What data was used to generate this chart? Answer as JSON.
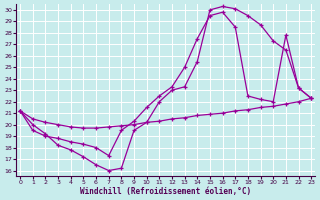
{
  "xlabel": "Windchill (Refroidissement éolien,°C)",
  "bg_color": "#c8ecec",
  "grid_color": "#aadddd",
  "line_color": "#990099",
  "xlim": [
    -0.3,
    23.3
  ],
  "ylim": [
    15.5,
    30.5
  ],
  "xticks": [
    0,
    1,
    2,
    3,
    4,
    5,
    6,
    7,
    8,
    9,
    10,
    11,
    12,
    13,
    14,
    15,
    16,
    17,
    18,
    19,
    20,
    21,
    22,
    23
  ],
  "yticks": [
    16,
    17,
    18,
    19,
    20,
    21,
    22,
    23,
    24,
    25,
    26,
    27,
    28,
    29,
    30
  ],
  "curve_outer_x": [
    0,
    1,
    2,
    3,
    4,
    5,
    6,
    7,
    8,
    9,
    10,
    11,
    12,
    13,
    14,
    15,
    16,
    17,
    18,
    19,
    20,
    21,
    22,
    23
  ],
  "curve_outer_y": [
    21.2,
    20.0,
    19.2,
    18.2,
    17.8,
    17.2,
    16.5,
    16.0,
    16.2,
    19.5,
    20.2,
    22.0,
    23.0,
    23.3,
    25.5,
    30.0,
    30.3,
    30.1,
    29.5,
    28.7,
    27.3,
    26.5,
    23.2,
    22.3
  ],
  "curve_inner_x": [
    0,
    1,
    2,
    3,
    4,
    5,
    6,
    7,
    8,
    9,
    10,
    11,
    12,
    13,
    14,
    15,
    16,
    17,
    18,
    19,
    20,
    21,
    22,
    23
  ],
  "curve_inner_y": [
    21.2,
    19.5,
    19.0,
    18.8,
    18.5,
    18.3,
    18.0,
    17.3,
    19.5,
    20.3,
    21.5,
    22.5,
    23.3,
    25.0,
    27.5,
    29.5,
    29.8,
    28.5,
    22.5,
    22.2,
    22.0,
    27.8,
    23.2,
    22.3
  ],
  "curve_straight_x": [
    0,
    1,
    2,
    3,
    4,
    5,
    6,
    7,
    8,
    9,
    10,
    11,
    12,
    13,
    14,
    15,
    16,
    17,
    18,
    19,
    20,
    21,
    22,
    23
  ],
  "curve_straight_y": [
    21.2,
    20.5,
    20.2,
    20.0,
    19.8,
    19.7,
    19.7,
    19.8,
    19.9,
    20.0,
    20.2,
    20.3,
    20.5,
    20.6,
    20.8,
    20.9,
    21.0,
    21.2,
    21.3,
    21.5,
    21.6,
    21.8,
    22.0,
    22.3
  ]
}
